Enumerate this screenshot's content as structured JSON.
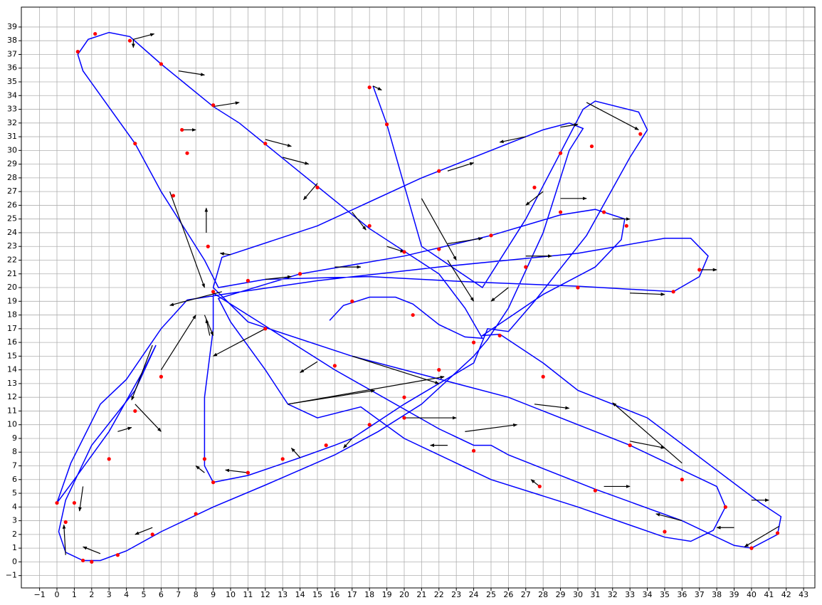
{
  "chart_data": {
    "type": "line",
    "xlim": [
      -2.05,
      43.65
    ],
    "ylim": [
      -1.9,
      40.45
    ],
    "grid": true,
    "xticks": [
      {
        "value": -1,
        "label": "−1"
      },
      0,
      1,
      2,
      3,
      4,
      5,
      6,
      7,
      8,
      9,
      10,
      11,
      12,
      13,
      14,
      15,
      16,
      17,
      18,
      19,
      20,
      21,
      22,
      23,
      24,
      25,
      26,
      27,
      28,
      29,
      30,
      31,
      32,
      33,
      34,
      35,
      36,
      37,
      38,
      39,
      40,
      41,
      42,
      43
    ],
    "yticks": [
      {
        "value": -1,
        "label": "−1"
      },
      0,
      1,
      2,
      3,
      4,
      5,
      6,
      7,
      8,
      9,
      10,
      11,
      12,
      13,
      14,
      15,
      16,
      17,
      18,
      19,
      20,
      21,
      22,
      23,
      24,
      25,
      26,
      27,
      28,
      29,
      30,
      31,
      32,
      33,
      34,
      35,
      36,
      37,
      38,
      39
    ],
    "path": {
      "color": "#0000ff",
      "x": [
        15.7,
        16.5,
        18,
        19.5,
        20.5,
        22,
        23.5,
        24.5,
        23.5,
        22,
        18,
        14,
        10.5,
        9,
        6,
        4.2,
        3,
        1.8,
        1.2,
        1.5,
        4.5,
        6,
        8.5,
        9.3,
        12,
        18,
        24,
        30,
        35.5,
        37,
        37.5,
        36.5,
        35,
        30,
        26,
        22,
        15,
        9.5,
        7.5,
        6,
        4,
        2.5,
        0.8,
        0,
        1,
        3,
        5,
        5.7,
        4.5,
        2,
        0.5,
        0.1,
        0.5,
        1.5,
        2.5,
        4,
        6,
        9,
        12,
        16,
        18.5,
        21,
        24,
        24.8,
        26,
        28,
        29.5,
        30.3,
        29.5,
        28,
        21,
        15,
        9.5,
        9,
        11,
        17,
        26,
        33,
        38,
        38.5,
        37.8,
        36.5,
        35,
        30,
        25,
        20,
        17.5,
        15,
        13.3,
        12,
        10,
        9.3,
        14,
        20,
        25,
        29,
        31,
        32.7,
        32.5,
        31,
        28,
        24.5,
        25.5,
        28,
        30,
        34,
        40.5,
        41.7,
        41.5,
        40,
        39,
        36,
        31,
        26,
        25,
        24,
        22,
        16,
        9,
        9,
        8.5,
        8.5,
        9,
        11,
        14,
        16,
        17,
        20,
        24,
        24.8,
        26,
        27.5,
        30.5,
        33,
        34,
        33.5,
        31,
        30.3,
        27,
        24.5,
        21,
        19,
        18.2
      ],
      "y": [
        17.6,
        18.7,
        19.3,
        19.3,
        18.8,
        17.3,
        16.4,
        16.3,
        18.5,
        21,
        24.3,
        28.4,
        32,
        33.2,
        36.3,
        38.3,
        38.6,
        38.1,
        37,
        35.8,
        30.5,
        27,
        22,
        20,
        20.6,
        20.8,
        20.4,
        20.1,
        19.7,
        20.8,
        22.3,
        23.6,
        23.6,
        22.5,
        22,
        21.5,
        20.5,
        19.5,
        19.1,
        17,
        13.3,
        11.5,
        7.2,
        4.3,
        6,
        9.5,
        14,
        15.8,
        12.5,
        8.5,
        4.5,
        2.2,
        0.7,
        0.1,
        0.1,
        0.8,
        2.2,
        4,
        5.6,
        7.8,
        9.5,
        11.5,
        15,
        16.2,
        18.5,
        24,
        30,
        31.6,
        32,
        31.5,
        28,
        24.5,
        22.2,
        20,
        17.5,
        15,
        12,
        8.5,
        5.5,
        4,
        2.3,
        1.5,
        1.8,
        4,
        6,
        9,
        11.3,
        10.5,
        11.5,
        14,
        17.5,
        19.2,
        21,
        22.3,
        23.8,
        25.3,
        25.7,
        25,
        23.5,
        21.5,
        19.5,
        16.5,
        16.6,
        14.5,
        12.5,
        10.5,
        4.3,
        3.3,
        2,
        1,
        1.2,
        3,
        5.3,
        7.8,
        8.5,
        8.5,
        9.7,
        14,
        19.6,
        17,
        12,
        7,
        5.8,
        6.3,
        7.6,
        8.5,
        9,
        11.5,
        14.5,
        17,
        16.8,
        19,
        23.8,
        29.5,
        31.5,
        32.8,
        33.6,
        33,
        25,
        20,
        23,
        31.9,
        34.7
      ]
    },
    "points": {
      "color": "#ff0000",
      "x": [
        0,
        0.5,
        1.5,
        2,
        3.5,
        5.5,
        8,
        11,
        13,
        15.5,
        18,
        20,
        22,
        24,
        25.5,
        28,
        33,
        36,
        38.5,
        40,
        41.5,
        35,
        31,
        27.8,
        24,
        20,
        16,
        12,
        9,
        8.7,
        7.5,
        7.2,
        4.5,
        1.2,
        2.2,
        4.2,
        6,
        9,
        12,
        15,
        18,
        20,
        22,
        25,
        29,
        31.5,
        32.8,
        33.6,
        30.8,
        29,
        27.5,
        22,
        18,
        19,
        30,
        35.5,
        37,
        27,
        20.5,
        17,
        14,
        11,
        6.7,
        6,
        4.5,
        3,
        1,
        8.5,
        9
      ],
      "y": [
        4.3,
        2.9,
        0.1,
        0,
        0.5,
        2,
        3.5,
        6.5,
        7.5,
        8.5,
        10,
        12,
        14,
        16,
        16.5,
        13.5,
        8.5,
        6,
        4,
        1,
        2.1,
        2.2,
        5.2,
        5.5,
        8.1,
        10.5,
        14.3,
        17,
        19.7,
        23,
        29.8,
        31.5,
        30.5,
        37.2,
        38.5,
        38,
        36.3,
        33.3,
        30.5,
        27.3,
        24.5,
        22.6,
        22.8,
        23.8,
        25.5,
        25.5,
        24.5,
        31.2,
        30.3,
        29.8,
        27.3,
        28.5,
        34.6,
        31.9,
        20,
        19.7,
        21.3,
        21.5,
        18,
        19,
        21,
        20.5,
        26.7,
        13.5,
        11,
        7.5,
        4.3,
        7.5,
        5.8
      ]
    },
    "arrows": {
      "color": "#000000",
      "x": [
        4.4,
        4.4,
        7,
        9,
        12,
        13,
        15,
        17,
        19,
        8.6,
        6.5,
        7.2,
        10,
        12,
        16,
        22.5,
        27,
        33,
        37,
        32,
        30.5,
        29,
        27,
        22.5,
        21,
        18.2,
        22.5,
        28,
        29,
        26,
        17,
        13.3,
        13.3,
        20,
        23.5,
        27.5,
        33,
        36,
        40,
        41.6,
        39,
        36,
        31.5,
        27.8,
        22.5,
        17,
        14,
        11,
        8.5,
        5.5,
        2.5,
        0.5,
        1.5,
        3.5,
        4.5,
        5.5,
        6,
        8.5,
        8.8,
        9.5,
        12,
        15
      ],
      "y": [
        38.1,
        38.1,
        35.8,
        33.2,
        30.8,
        29.5,
        27.6,
        25.5,
        23,
        24,
        27,
        31.5,
        22.4,
        20.6,
        21.5,
        23.2,
        22.3,
        19.6,
        21.3,
        25,
        33.5,
        31.7,
        31,
        28.5,
        26.5,
        34.7,
        22,
        27,
        26.5,
        20,
        15,
        11.5,
        11.5,
        10.5,
        9.5,
        11.5,
        8.8,
        7.2,
        4.5,
        2.6,
        2.5,
        3,
        5.5,
        5.5,
        8.5,
        9,
        7.6,
        6.5,
        6.5,
        2.5,
        0.6,
        0.5,
        5.5,
        9.5,
        11.5,
        15.8,
        14,
        18,
        16.5,
        19.7,
        17,
        14.6
      ],
      "u": [
        1.2,
        0,
        1.5,
        1.5,
        1.5,
        1.5,
        -0.8,
        0.8,
        1,
        0,
        2,
        0.8,
        -0.6,
        1.5,
        1.5,
        2,
        1.5,
        2,
        1,
        1,
        3,
        1,
        -1.5,
        1.5,
        2,
        0.5,
        1.5,
        -1,
        1.5,
        -1,
        5,
        5,
        9,
        3,
        3,
        2,
        2,
        -4,
        1,
        -2,
        -1,
        -1.5,
        1.5,
        -0.5,
        -1,
        -0.5,
        -0.5,
        -1.3,
        -0.5,
        -1,
        -1,
        -0.1,
        -0.2,
        0.8,
        1.5,
        -1.2,
        2,
        0.5,
        -0.2,
        -3,
        -3,
        -1
      ],
      "v": [
        0.4,
        -0.6,
        -0.3,
        0.3,
        -0.5,
        -0.5,
        -1.2,
        -1.3,
        -0.4,
        1.8,
        -7,
        0,
        0.1,
        0.2,
        0,
        0.4,
        0,
        -0.1,
        0,
        0,
        -2,
        0.2,
        -0.4,
        0.6,
        -4.5,
        -0.3,
        -3,
        -1,
        0,
        -1,
        -2,
        1,
        2,
        0,
        0.5,
        -0.3,
        -0.5,
        4.4,
        0,
        -1.5,
        0,
        0.5,
        0,
        0.5,
        0,
        -0.7,
        0.7,
        0.2,
        0.5,
        -0.5,
        0.5,
        2.2,
        -1.8,
        0.3,
        -2,
        -4,
        4,
        -1.5,
        1.2,
        -1,
        -2,
        -0.8
      ]
    }
  }
}
